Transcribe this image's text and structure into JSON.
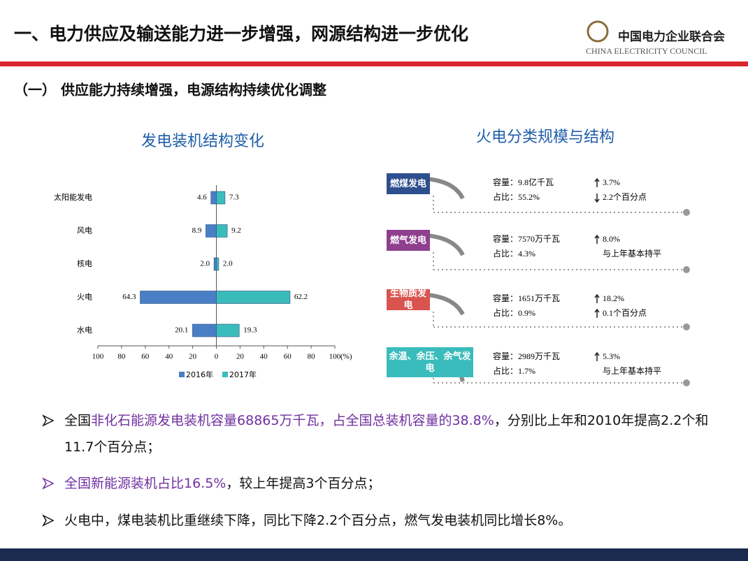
{
  "header": {
    "title": "一、电力供应及输送能力进一步增强，网源结构进一步优化",
    "org_name": "中国电力企业联合会",
    "org_name_en": "CHINA ELECTRICITY COUNCIL"
  },
  "section": {
    "title": "（一） 供应能力持续增强，电源结构持续优化调整"
  },
  "chart_data": {
    "type": "butterfly_bar",
    "title": "发电装机结构变化",
    "x_label": "(%)",
    "categories": [
      "太阳能发电",
      "风电",
      "核电",
      "火电",
      "水电"
    ],
    "series": [
      {
        "name": "2016年",
        "color": "#4a7fc6",
        "side": "left",
        "values": [
          4.6,
          8.9,
          2.0,
          64.3,
          20.1
        ],
        "value_labels": [
          "4.6",
          "8.9",
          "2.0",
          "64.3",
          "20.1"
        ]
      },
      {
        "name": "2017年",
        "color": "#3bbcbc",
        "side": "right",
        "values": [
          7.3,
          9.2,
          2.0,
          62.2,
          19.3
        ],
        "value_labels": [
          "7.3",
          "9.2",
          "2.0",
          "62.2",
          "19.3"
        ]
      }
    ],
    "xlim": [
      -100,
      100
    ],
    "xticks": [
      {
        "value": -100,
        "label": "100"
      },
      {
        "value": -80,
        "label": "80"
      },
      {
        "value": -60,
        "label": "60"
      },
      {
        "value": -40,
        "label": "40"
      },
      {
        "value": -20,
        "label": "20"
      },
      0,
      20,
      40,
      60,
      80,
      100
    ]
  },
  "diagram": {
    "title": "火电分类规模与结构",
    "items": [
      {
        "label": "燃煤发电",
        "color": "#2d4f8e",
        "capacity": "容量：9.8亿千瓦",
        "share": "占比：55.2%",
        "capacity_change": "3.7%",
        "capacity_trend": "up",
        "share_change": "2.2个百分点",
        "share_trend": "down"
      },
      {
        "label": "燃气发电",
        "color": "#8e3f8e",
        "capacity": "容量：7570万千瓦",
        "share": "占比：4.3%",
        "capacity_change": "8.0%",
        "capacity_trend": "up",
        "share_change": "与上年基本持平",
        "share_trend": "none"
      },
      {
        "label": "生物质发电",
        "color": "#d9534f",
        "capacity": "容量：1651万千瓦",
        "share": "占比：0.9%",
        "capacity_change": "18.2%",
        "capacity_trend": "up",
        "share_change": "0.1个百分点",
        "share_trend": "up"
      },
      {
        "label": "余温、余压、余气发电",
        "color": "#3bbcbc",
        "capacity": "容量：2989万千瓦",
        "share": "占比：1.7%",
        "capacity_change": "5.3%",
        "capacity_trend": "up",
        "share_change": "与上年基本持平",
        "share_trend": "none"
      }
    ]
  },
  "bullets": [
    [
      {
        "text": "全国"
      },
      {
        "text": "非化石能源发电装机容量68865万千瓦，占全国总装机容量的38.8%",
        "color": "#7030a0"
      },
      {
        "text": "，分别比上年和2010年提高2.2个和11.7个百分点；"
      }
    ],
    [
      {
        "text": "全国新能源装机占比16.5%",
        "color": "#7030a0"
      },
      {
        "text": "，较上年提高3个百分点；"
      }
    ],
    [
      {
        "text": "火电中，煤电装机比重继续下降，同比下降2.2个百分点，燃气发电装机同比增长8%。"
      }
    ]
  ]
}
